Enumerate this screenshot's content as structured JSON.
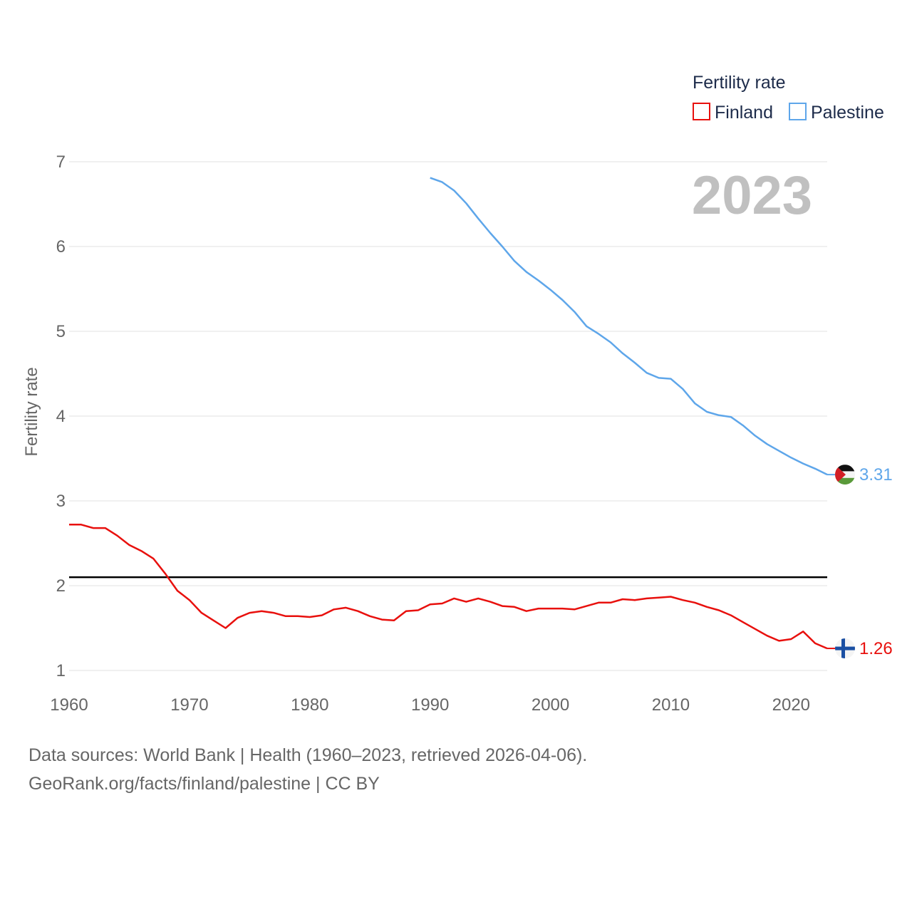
{
  "chart_data": {
    "type": "line",
    "year_label": "2023",
    "ylabel": "Fertility rate",
    "xlim": [
      1960,
      2023
    ],
    "ylim": [
      1,
      7
    ],
    "x_ticks": [
      "1960",
      "1970",
      "1980",
      "1990",
      "2000",
      "2010",
      "2020"
    ],
    "y_ticks": [
      "1",
      "2",
      "3",
      "4",
      "5",
      "6",
      "7"
    ],
    "reference_line": 2.1,
    "legend": {
      "title": "Fertility rate",
      "placement": "top-right"
    },
    "series": [
      {
        "name": "Finland",
        "color": "#e8100d",
        "flag": "finland-flag",
        "end_label": "1.26",
        "x": [
          1960,
          1961,
          1962,
          1963,
          1964,
          1965,
          1966,
          1967,
          1968,
          1969,
          1970,
          1971,
          1972,
          1973,
          1974,
          1975,
          1976,
          1977,
          1978,
          1979,
          1980,
          1981,
          1982,
          1983,
          1984,
          1985,
          1986,
          1987,
          1988,
          1989,
          1990,
          1991,
          1992,
          1993,
          1994,
          1995,
          1996,
          1997,
          1998,
          1999,
          2000,
          2001,
          2002,
          2003,
          2004,
          2005,
          2006,
          2007,
          2008,
          2009,
          2010,
          2011,
          2012,
          2013,
          2014,
          2015,
          2016,
          2017,
          2018,
          2019,
          2020,
          2021,
          2022,
          2023
        ],
        "values": [
          2.72,
          2.72,
          2.68,
          2.68,
          2.59,
          2.48,
          2.41,
          2.32,
          2.14,
          1.94,
          1.83,
          1.68,
          1.59,
          1.5,
          1.62,
          1.68,
          1.7,
          1.68,
          1.64,
          1.64,
          1.63,
          1.65,
          1.72,
          1.74,
          1.7,
          1.64,
          1.6,
          1.59,
          1.7,
          1.71,
          1.78,
          1.79,
          1.85,
          1.81,
          1.85,
          1.81,
          1.76,
          1.75,
          1.7,
          1.73,
          1.73,
          1.73,
          1.72,
          1.76,
          1.8,
          1.8,
          1.84,
          1.83,
          1.85,
          1.86,
          1.87,
          1.83,
          1.8,
          1.75,
          1.71,
          1.65,
          1.57,
          1.49,
          1.41,
          1.35,
          1.37,
          1.46,
          1.32,
          1.26
        ]
      },
      {
        "name": "Palestine",
        "color": "#5ea6ea",
        "flag": "palestine-flag",
        "end_label": "3.31",
        "x": [
          1990,
          1991,
          1992,
          1993,
          1994,
          1995,
          1996,
          1997,
          1998,
          1999,
          2000,
          2001,
          2002,
          2003,
          2004,
          2005,
          2006,
          2007,
          2008,
          2009,
          2010,
          2011,
          2012,
          2013,
          2014,
          2015,
          2016,
          2017,
          2018,
          2019,
          2020,
          2021,
          2022,
          2023
        ],
        "values": [
          6.81,
          6.76,
          6.66,
          6.51,
          6.33,
          6.16,
          6.0,
          5.83,
          5.7,
          5.6,
          5.49,
          5.37,
          5.23,
          5.06,
          4.97,
          4.87,
          4.74,
          4.63,
          4.51,
          4.45,
          4.44,
          4.32,
          4.15,
          4.05,
          4.01,
          3.99,
          3.89,
          3.77,
          3.67,
          3.59,
          3.51,
          3.44,
          3.38,
          3.31
        ]
      }
    ]
  },
  "source": {
    "line1": "Data sources: World Bank | Health (1960–2023, retrieved 2026-04-06).",
    "line2": "GeoRank.org/facts/finland/palestine | CC BY"
  }
}
